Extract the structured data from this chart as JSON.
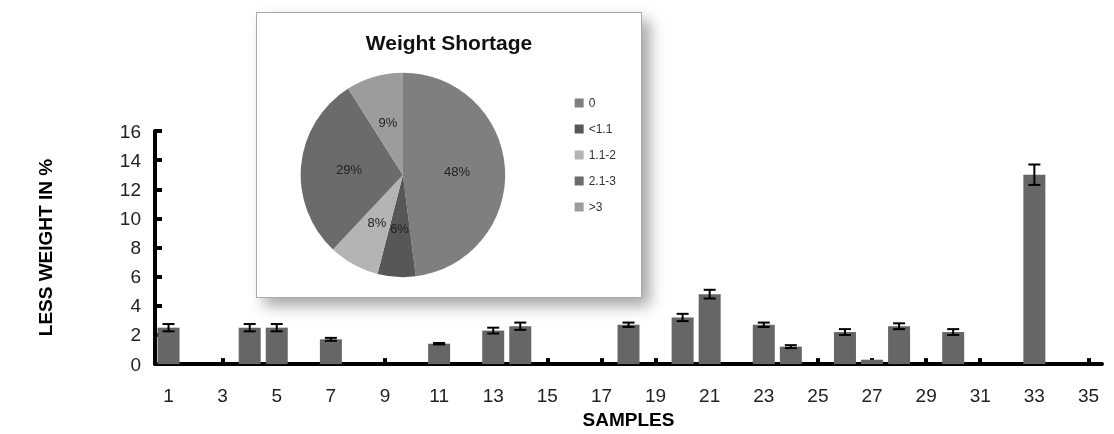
{
  "chart_data": [
    {
      "type": "bar",
      "xlabel": "SAMPLES",
      "ylabel": "LESS WEIGHT IN %",
      "x": [
        1,
        2,
        3,
        4,
        5,
        6,
        7,
        8,
        9,
        10,
        11,
        12,
        13,
        14,
        15,
        16,
        17,
        18,
        19,
        20,
        21,
        22,
        23,
        24,
        25,
        26,
        27,
        28,
        29,
        30,
        31,
        32,
        33,
        34,
        35
      ],
      "xlim": [
        0.5,
        35.5
      ],
      "xticks": [
        1,
        3,
        5,
        7,
        9,
        11,
        13,
        15,
        17,
        19,
        21,
        23,
        25,
        27,
        29,
        31,
        33,
        35
      ],
      "values": [
        2.5,
        0,
        0,
        2.5,
        2.5,
        0,
        1.7,
        0,
        0,
        0,
        1.4,
        0,
        2.3,
        2.6,
        0,
        0,
        0,
        2.7,
        0,
        3.2,
        4.8,
        0,
        2.7,
        1.2,
        0,
        2.2,
        0.3,
        2.6,
        0,
        2.2,
        0,
        0,
        13.0,
        0,
        0
      ],
      "errors": [
        0.25,
        null,
        null,
        0.25,
        0.25,
        null,
        0.1,
        null,
        null,
        null,
        0.05,
        null,
        0.2,
        0.25,
        null,
        null,
        null,
        0.15,
        null,
        0.25,
        0.3,
        null,
        0.15,
        0.1,
        null,
        0.2,
        null,
        0.2,
        null,
        0.2,
        null,
        null,
        0.7,
        null,
        null
      ],
      "color": "#666666",
      "ylim": [
        0,
        16
      ],
      "yticks": [
        0,
        2,
        4,
        6,
        8,
        10,
        12,
        14,
        16
      ],
      "grid": false,
      "legend": false
    },
    {
      "type": "pie",
      "title": "Weight Shortage",
      "categories": [
        "0",
        "<1.1",
        "1.1-2",
        "2.1-3",
        ">3"
      ],
      "values": [
        48,
        6,
        8,
        29,
        9
      ],
      "value_labels": [
        "48%",
        "6%",
        "8%",
        "29%",
        "9%"
      ],
      "colors": [
        "#7f7f7f",
        "#575757",
        "#b4b4b4",
        "#6b6b6b",
        "#9c9c9c"
      ],
      "legend": "right"
    }
  ]
}
